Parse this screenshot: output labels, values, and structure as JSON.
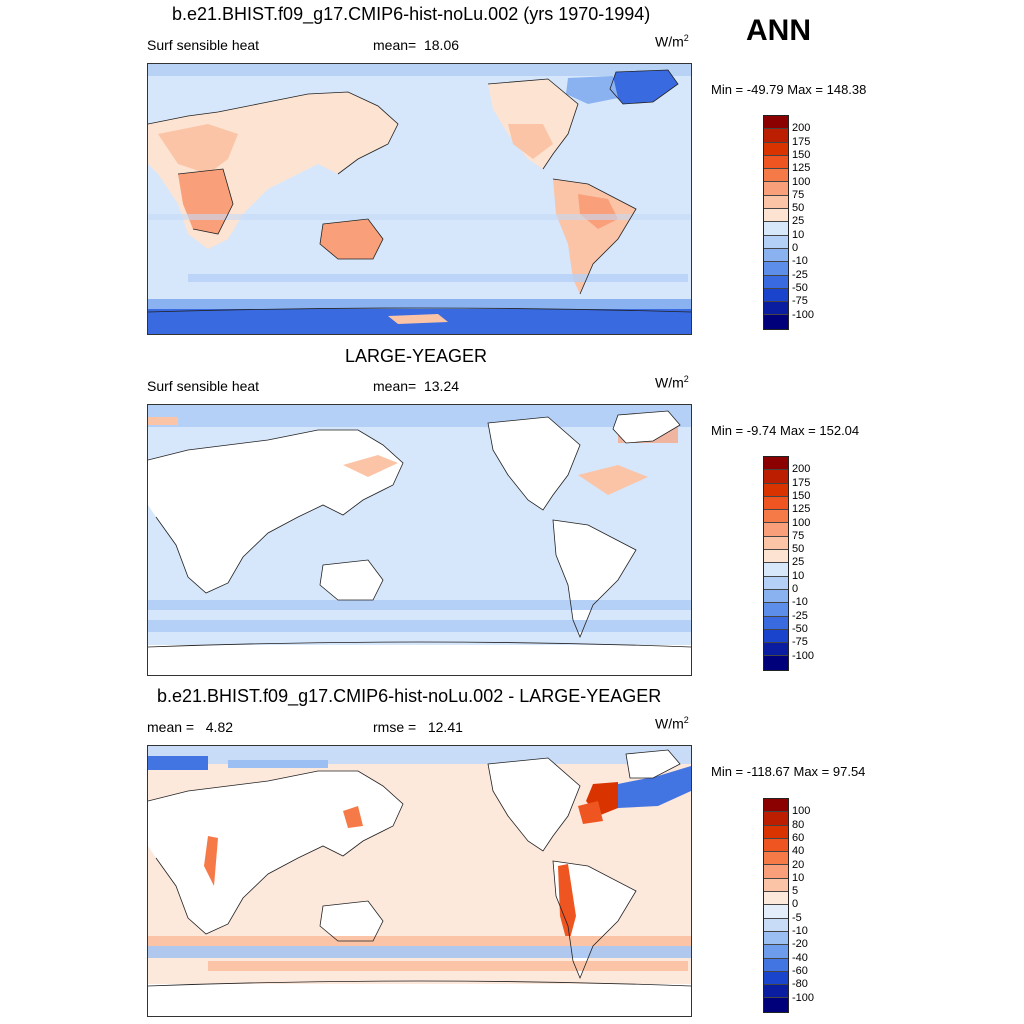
{
  "header": {
    "title": "b.e21.BHIST.f09_g17.CMIP6-hist-noLu.002 (yrs 1970-1994)",
    "season": "ANN"
  },
  "panels": [
    {
      "variable": "Surf sensible heat",
      "mean_label": "mean=",
      "mean_value": "18.06",
      "units": "W/m",
      "units_exp": "2",
      "min_max": "Min = -49.79 Max = 148.38",
      "colorbar_labels": [
        "200",
        "175",
        "150",
        "125",
        "100",
        "75",
        "50",
        "25",
        "10",
        "0",
        "-10",
        "-25",
        "-50",
        "-75",
        "-100"
      ],
      "colorbar_colors": [
        "#8b0000",
        "#bb1e00",
        "#d93300",
        "#ee5520",
        "#f57a48",
        "#f9a07a",
        "#fbc4a6",
        "#fde4d2",
        "#d8e8fb",
        "#b5d0f6",
        "#8ab2f1",
        "#5d8eea",
        "#3a6ae0",
        "#1a44cc",
        "#0a1da0",
        "#00007a"
      ]
    },
    {
      "title": "LARGE-YEAGER",
      "variable": "Surf sensible heat",
      "mean_label": "mean=",
      "mean_value": "13.24",
      "units": "W/m",
      "units_exp": "2",
      "min_max": "Min =  -9.74 Max = 152.04",
      "colorbar_labels": [
        "200",
        "175",
        "150",
        "125",
        "100",
        "75",
        "50",
        "25",
        "10",
        "0",
        "-10",
        "-25",
        "-50",
        "-75",
        "-100"
      ],
      "colorbar_colors": [
        "#8b0000",
        "#bb1e00",
        "#d93300",
        "#ee5520",
        "#f57a48",
        "#f9a07a",
        "#fbc4a6",
        "#fde4d2",
        "#d8e8fb",
        "#b5d0f6",
        "#8ab2f1",
        "#5d8eea",
        "#3a6ae0",
        "#1a44cc",
        "#0a1da0",
        "#00007a"
      ]
    },
    {
      "title": "b.e21.BHIST.f09_g17.CMIP6-hist-noLu.002 - LARGE-YEAGER",
      "mean_label": "mean =",
      "mean_value": "4.82",
      "rmse_label": "rmse =",
      "rmse_value": "12.41",
      "units": "W/m",
      "units_exp": "2",
      "min_max": "Min = -118.67 Max =  97.54",
      "colorbar_labels": [
        "100",
        "80",
        "60",
        "40",
        "20",
        "10",
        "5",
        "0",
        "-5",
        "-10",
        "-20",
        "-40",
        "-60",
        "-80",
        "-100"
      ],
      "colorbar_colors": [
        "#8b0000",
        "#bb1e00",
        "#d93300",
        "#ee5520",
        "#f57a48",
        "#f9a07a",
        "#fbc4a6",
        "#fde8dc",
        "#e4eefb",
        "#c8dcf8",
        "#9cbff3",
        "#6e9cec",
        "#4274e2",
        "#1a44cc",
        "#0a1da0",
        "#00007a"
      ]
    }
  ]
}
